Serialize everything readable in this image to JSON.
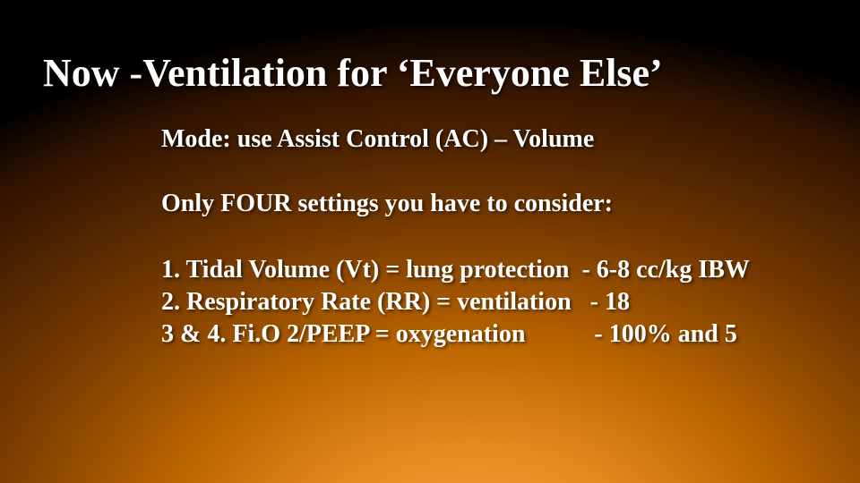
{
  "slide": {
    "background": {
      "type": "radial-gradient",
      "center": "55% 115%",
      "stops": [
        "#f7a33a",
        "#e78a1f",
        "#b96400",
        "#6e3500",
        "#2e1200",
        "#000000"
      ]
    },
    "text_color": "#ffffff",
    "font_family": "Times New Roman",
    "title": {
      "text": "Now -Ventilation for ‘Everyone Else’",
      "fontsize": 44,
      "weight": "bold"
    },
    "subtitle": {
      "text": "Mode: use Assist Control (AC) – Volume",
      "fontsize": 28,
      "weight": "bold"
    },
    "body": {
      "intro": "Only FOUR settings you have to consider:",
      "items": [
        "1. Tidal Volume (Vt) = lung protection  - 6-8 cc/kg IBW",
        "2. Respiratory Rate (RR) = ventilation   - 18",
        "3 & 4. Fi.O 2/PEEP = oxygenation           - 100% and 5"
      ],
      "fontsize": 28,
      "weight": "bold"
    }
  }
}
